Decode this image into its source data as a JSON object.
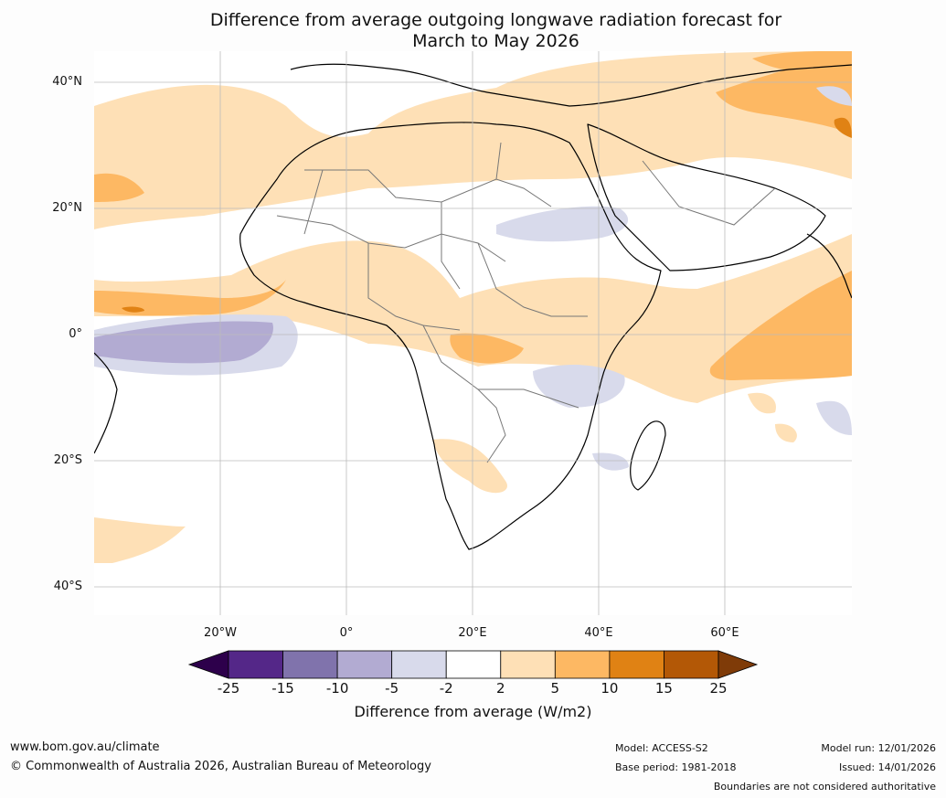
{
  "title": {
    "line1": "Difference from average outgoing longwave radiation forecast for",
    "line2": "March to May 2026"
  },
  "axes": {
    "lat_labels": [
      "40°N",
      "20°N",
      "0°",
      "20°S",
      "40°S"
    ],
    "lon_labels": [
      "20°W",
      "0°",
      "20°E",
      "40°E",
      "60°E"
    ]
  },
  "legend": {
    "title": "Difference from average (W/m2)",
    "ticks": [
      "-25",
      "-15",
      "-10",
      "-5",
      "-2",
      "2",
      "5",
      "10",
      "15",
      "25"
    ],
    "colors": [
      "#2d004b",
      "#542788",
      "#8073ac",
      "#b2abd2",
      "#d8daeb",
      "#ffffff",
      "#fee0b6",
      "#fdb863",
      "#e08214",
      "#b35806",
      "#7f3b08"
    ]
  },
  "footer": {
    "website": "www.bom.gov.au/climate",
    "copyright": "© Commonwealth of Australia 2026, Australian Bureau of Meteorology",
    "model": "Model: ACCESS-S2",
    "base_period": "Base period: 1981-2018",
    "model_run": "Model run: 12/01/2026",
    "issued": "Issued: 14/01/2026",
    "disclaimer": "Boundaries are not considered authoritative"
  }
}
